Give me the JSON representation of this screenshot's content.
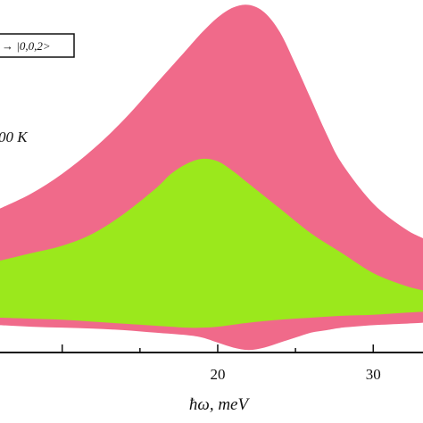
{
  "chart_data": {
    "type": "area",
    "xlabel": "ħω, meV",
    "x_ticks": [
      20,
      30
    ],
    "xlim": [
      6,
      33.2
    ],
    "ylim": [
      -0.5,
      6.6
    ],
    "annotations": {
      "legend_box": "→ |0,0,2>",
      "temperature": "00 K"
    },
    "series": [
      {
        "color": "#f06a8a",
        "x": [
          6,
          8,
          10,
          12,
          14,
          16,
          18,
          19,
          20,
          21,
          22,
          23,
          24,
          25,
          26,
          27,
          28,
          30,
          32,
          33.2
        ],
        "upper": [
          2.4,
          2.7,
          3.1,
          3.6,
          4.2,
          4.9,
          5.6,
          5.95,
          6.25,
          6.45,
          6.5,
          6.35,
          5.95,
          5.3,
          4.6,
          3.9,
          3.3,
          2.5,
          2.0,
          1.8
        ],
        "lower": [
          0.05,
          0.02,
          0.0,
          -0.02,
          -0.05,
          -0.1,
          -0.15,
          -0.2,
          -0.3,
          -0.4,
          -0.45,
          -0.4,
          -0.3,
          -0.2,
          -0.1,
          -0.05,
          0.0,
          0.05,
          0.08,
          0.1
        ]
      },
      {
        "color": "#9be81c",
        "x": [
          6,
          8,
          10,
          12,
          14,
          16,
          17,
          18,
          19,
          20,
          21,
          22,
          24,
          26,
          28,
          30,
          32,
          33.2
        ],
        "upper": [
          1.35,
          1.5,
          1.65,
          1.9,
          2.3,
          2.8,
          3.1,
          3.3,
          3.4,
          3.35,
          3.15,
          2.9,
          2.4,
          1.9,
          1.5,
          1.1,
          0.85,
          0.75
        ],
        "lower": [
          0.2,
          0.18,
          0.16,
          0.12,
          0.08,
          0.04,
          0.02,
          0.0,
          0.0,
          0.02,
          0.06,
          0.1,
          0.16,
          0.2,
          0.24,
          0.26,
          0.3,
          0.32
        ]
      }
    ]
  }
}
